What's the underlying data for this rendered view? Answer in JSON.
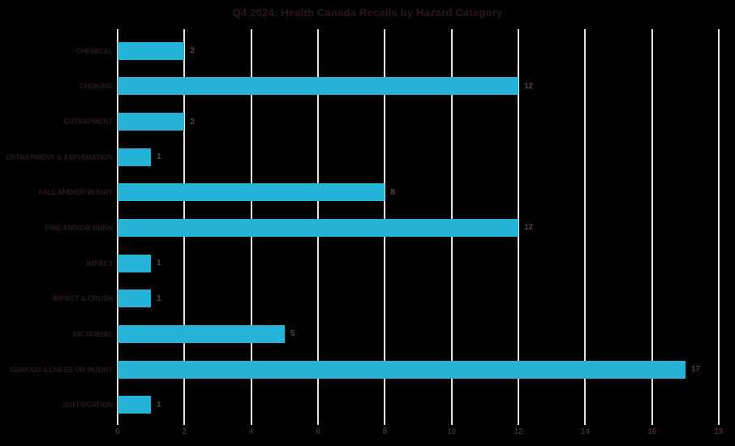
{
  "title": "Q4 2024: Health Canada Recalls by Hazard Category",
  "colors": {
    "background": "#000000",
    "bar": "#25b4d7",
    "gridline": "#eadfe3",
    "title_text": "#2b181d",
    "category_text": "#2b181d",
    "value_text": "#5c4049",
    "tick_text": "#3f2b33"
  },
  "chart_data": {
    "type": "bar",
    "orientation": "horizontal",
    "title": "Q4 2024: Health Canada Recalls by Hazard Category",
    "categories": [
      "CHEMICAL",
      "CHOKING",
      "ENTRAPMENT",
      "ENTRAPMENT & ASPHIXIATION",
      "FALL AND/OR INJURY",
      "FIRE AND/OR BURN",
      "IMPACT",
      "IMPACT & CRUSH",
      "MICROBIAL",
      "SERIOUS ILLNESS OR INJURY",
      "SUFFOCATION"
    ],
    "values": [
      2,
      12,
      2,
      1,
      8,
      12,
      1,
      1,
      5,
      17,
      1
    ],
    "bar_value_labels": [
      "2",
      "12",
      "2",
      "1",
      "8",
      "12",
      "1",
      "1",
      "5",
      "17",
      "1"
    ],
    "xlabel": "",
    "ylabel": "",
    "xlim": [
      0,
      18
    ],
    "xticks": [
      0,
      2,
      4,
      6,
      8,
      10,
      12,
      14,
      16,
      18
    ],
    "grid": true,
    "legend": false,
    "bar_labels_shown": true
  }
}
